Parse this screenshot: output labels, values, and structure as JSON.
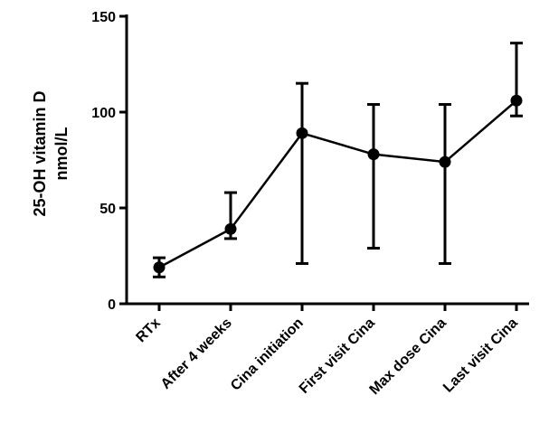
{
  "chart_data": {
    "type": "line",
    "categories": [
      "RTx",
      "After 4 weeks",
      "Cina initiation",
      "First visit Cina",
      "Max dose Cina",
      "Last visit Cina"
    ],
    "series": [
      {
        "values": [
          19,
          39,
          89,
          78,
          74,
          106
        ],
        "error_upper": [
          24,
          58,
          115,
          104,
          104,
          136
        ],
        "error_lower": [
          14,
          34,
          21,
          29,
          21,
          98
        ]
      }
    ],
    "ylabel_line1": "25-OH vitamin D",
    "ylabel_line2": "nmol/L",
    "ylim": [
      0,
      150
    ],
    "yticks": [
      0,
      50,
      100,
      150
    ],
    "xlabel": "",
    "title": "",
    "grid": false,
    "legend": "none"
  }
}
